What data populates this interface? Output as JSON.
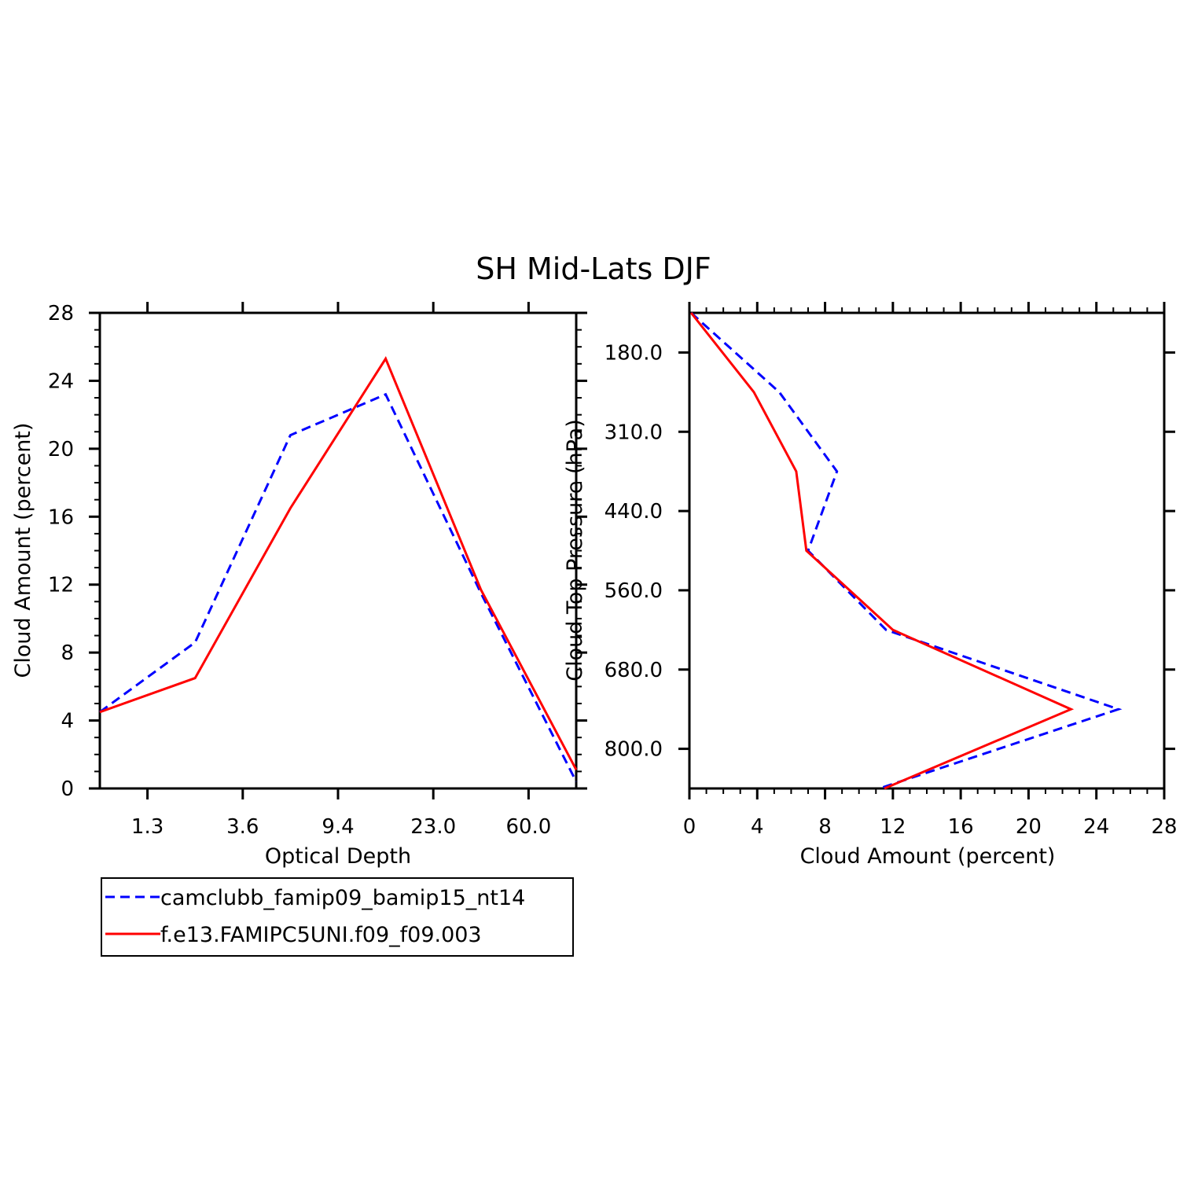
{
  "title": "SH Mid-Lats DJF",
  "colors": {
    "series1": "#0000ff",
    "series2": "#ff0000"
  },
  "legend": {
    "position": "bottom-left",
    "items": [
      {
        "label": "camclubb_famip09_bamip15_nt14",
        "style": "dashed",
        "color": "#0000ff"
      },
      {
        "label": "f.e13.FAMIPC5UNI.f09_f09.003",
        "style": "solid",
        "color": "#ff0000"
      }
    ]
  },
  "chart_data": [
    {
      "type": "line",
      "name": "optical-depth-profile",
      "xlabel": "Optical Depth",
      "ylabel": "Cloud Amount (percent)",
      "x_tick_labels": [
        "1.3",
        "3.6",
        "9.4",
        "23.0",
        "60.0"
      ],
      "x_index": [
        0,
        1,
        2,
        3,
        4,
        5
      ],
      "ylim": [
        0,
        28
      ],
      "y_ticks": [
        0,
        4,
        8,
        12,
        16,
        20,
        24,
        28
      ],
      "series": [
        {
          "name": "camclubb_famip09_bamip15_nt14",
          "color": "#0000ff",
          "dash": true,
          "values": [
            4.5,
            8.6,
            20.8,
            23.2,
            11.5,
            0.4
          ]
        },
        {
          "name": "f.e13.FAMIPC5UNI.f09_f09.003",
          "color": "#ff0000",
          "dash": false,
          "values": [
            4.5,
            6.5,
            16.5,
            25.3,
            11.7,
            1.1
          ]
        }
      ]
    },
    {
      "type": "line",
      "name": "cloud-top-pressure-profile",
      "xlabel": "Cloud Amount (percent)",
      "ylabel": "Cloud Top Pressure (hPa)",
      "xlim": [
        0,
        28
      ],
      "x_ticks": [
        0,
        4,
        8,
        12,
        16,
        20,
        24,
        28
      ],
      "y_tick_labels": [
        "180.0",
        "310.0",
        "440.0",
        "560.0",
        "680.0",
        "800.0"
      ],
      "y_index": [
        0,
        1,
        2,
        3,
        4,
        5,
        6
      ],
      "series": [
        {
          "name": "camclubb_famip09_bamip15_nt14",
          "color": "#0000ff",
          "dash": true,
          "values": [
            0.1,
            5.3,
            8.7,
            7.0,
            11.6,
            25.3,
            11.2
          ]
        },
        {
          "name": "f.e13.FAMIPC5UNI.f09_f09.003",
          "color": "#ff0000",
          "dash": false,
          "values": [
            0.1,
            3.8,
            6.3,
            6.9,
            12.0,
            22.5,
            11.5
          ]
        }
      ]
    }
  ]
}
